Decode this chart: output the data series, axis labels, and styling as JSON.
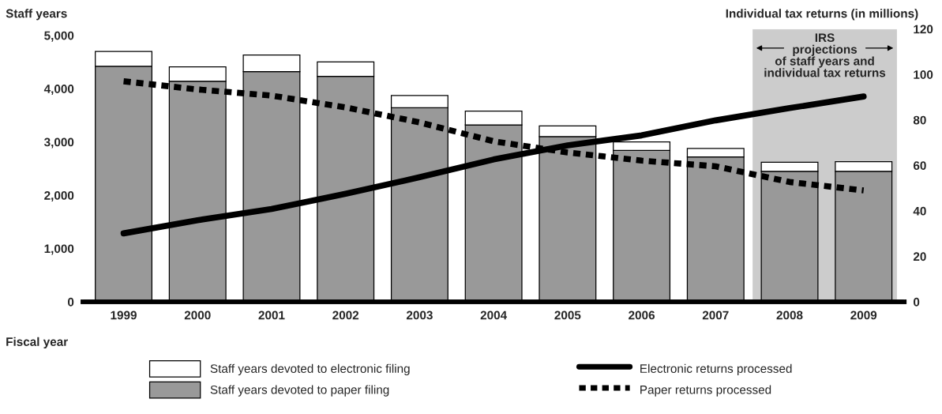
{
  "chart_data": {
    "type": "bar",
    "stacked": true,
    "ylabel": "Staff years",
    "y2label": "Individual tax returns (in millions)",
    "xlabel": "Fiscal year",
    "categories": [
      "1999",
      "2000",
      "2001",
      "2002",
      "2003",
      "2004",
      "2005",
      "2006",
      "2007",
      "2008",
      "2009"
    ],
    "series": [
      {
        "name": "Staff years devoted to paper filing",
        "color": "#999999",
        "values": [
          4420,
          4140,
          4320,
          4230,
          3640,
          3320,
          3100,
          2840,
          2720,
          2450,
          2450
        ]
      },
      {
        "name": "Staff years devoted to electronic filing",
        "color": "#ffffff",
        "values": [
          280,
          270,
          310,
          270,
          230,
          260,
          200,
          160,
          160,
          170,
          180
        ]
      },
      {
        "name": "Electronic returns processed",
        "type": "line",
        "axis": "y2",
        "color": "#000000",
        "line_style": "solid",
        "values": [
          30.1,
          35.9,
          40.8,
          47.5,
          54.8,
          62.6,
          68.8,
          73.2,
          79.8,
          85.2,
          90.3
        ]
      },
      {
        "name": "Paper returns processed",
        "type": "line",
        "axis": "y2",
        "color": "#000000",
        "line_style": "dashed",
        "values": [
          97,
          93.4,
          90.7,
          85.5,
          78.9,
          70.6,
          65.7,
          62.1,
          59.6,
          52.7,
          49
        ]
      }
    ],
    "ylim": [
      0,
      5120
    ],
    "yticks": [
      0,
      {
        "value": 1000,
        "label": "1,000"
      },
      {
        "value": 2000,
        "label": "2,000"
      },
      {
        "value": 3000,
        "label": "3,000"
      },
      {
        "value": 4000,
        "label": "4,000"
      },
      {
        "value": 5000,
        "label": "5,000"
      }
    ],
    "y2lim": [
      0,
      120
    ],
    "y2ticks": [
      0,
      20,
      40,
      60,
      80,
      100,
      120
    ],
    "bands": [
      {
        "axis": "x",
        "from": "2008",
        "to": "2009",
        "color": "#cccccc",
        "label": "IRS\nprojections\nof staff years and\nindividual tax returns"
      }
    ],
    "grid": false,
    "legend": "bottom",
    "marker": "none"
  }
}
